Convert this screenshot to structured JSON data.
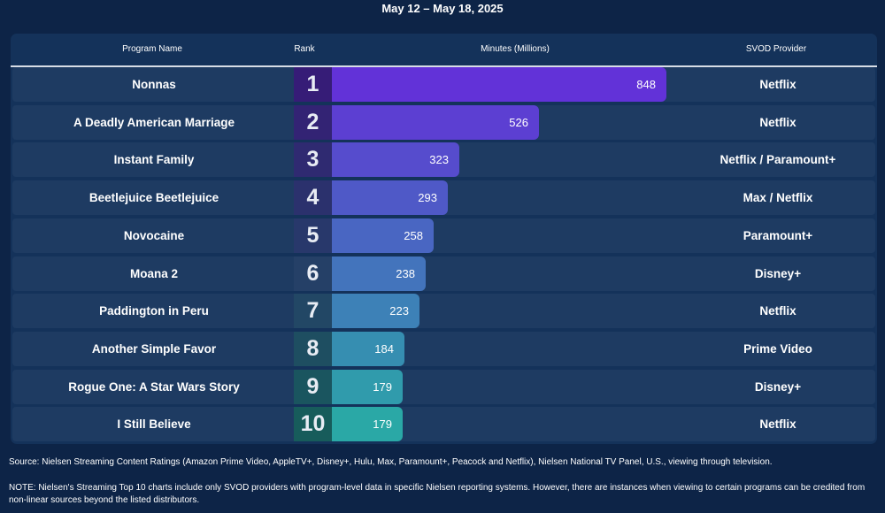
{
  "subtitle": "May 12 – May 18, 2025",
  "headers": {
    "program": "Program Name",
    "rank": "Rank",
    "minutes": "Minutes (Millions)",
    "provider": "SVOD Provider"
  },
  "colors": {
    "background": "#0d2447",
    "panel": "#14325a",
    "row": "#1e3b62",
    "bar_top": "#6232d8",
    "bar_bottom": "#2aa8a6"
  },
  "chart_data": {
    "type": "bar",
    "orientation": "horizontal",
    "title": "",
    "xlabel": "Minutes (Millions)",
    "ylabel": "",
    "xlim": [
      0,
      1000
    ],
    "grid": false,
    "rows": [
      {
        "rank": "1",
        "program": "Nonnas",
        "minutes": 848,
        "provider": "Netflix"
      },
      {
        "rank": "2",
        "program": "A Deadly American Marriage",
        "minutes": 526,
        "provider": "Netflix"
      },
      {
        "rank": "3",
        "program": "Instant Family",
        "minutes": 323,
        "provider": "Netflix / Paramount+"
      },
      {
        "rank": "4",
        "program": "Beetlejuice Beetlejuice",
        "minutes": 293,
        "provider": "Max / Netflix"
      },
      {
        "rank": "5",
        "program": "Novocaine",
        "minutes": 258,
        "provider": "Paramount+"
      },
      {
        "rank": "6",
        "program": "Moana 2",
        "minutes": 238,
        "provider": "Disney+"
      },
      {
        "rank": "7",
        "program": "Paddington in Peru",
        "minutes": 223,
        "provider": "Netflix"
      },
      {
        "rank": "8",
        "program": "Another Simple Favor",
        "minutes": 184,
        "provider": "Prime Video"
      },
      {
        "rank": "9",
        "program": "Rogue One: A Star Wars Story",
        "minutes": 179,
        "provider": "Disney+"
      },
      {
        "rank": "10",
        "program": "I Still Believe",
        "minutes": 179,
        "provider": "Netflix"
      }
    ]
  },
  "footer": {
    "source": "Source: Nielsen Streaming Content Ratings (Amazon Prime Video, AppleTV+, Disney+, Hulu, Max, Paramount+, Peacock and Netflix), Nielsen National TV Panel, U.S., viewing through television.",
    "note": "NOTE: Nielsen's Streaming Top 10 charts include only SVOD providers with program-level data in specific Nielsen reporting systems. However, there are instances when viewing to certain programs can be credited from non-linear sources beyond the listed distributors."
  }
}
